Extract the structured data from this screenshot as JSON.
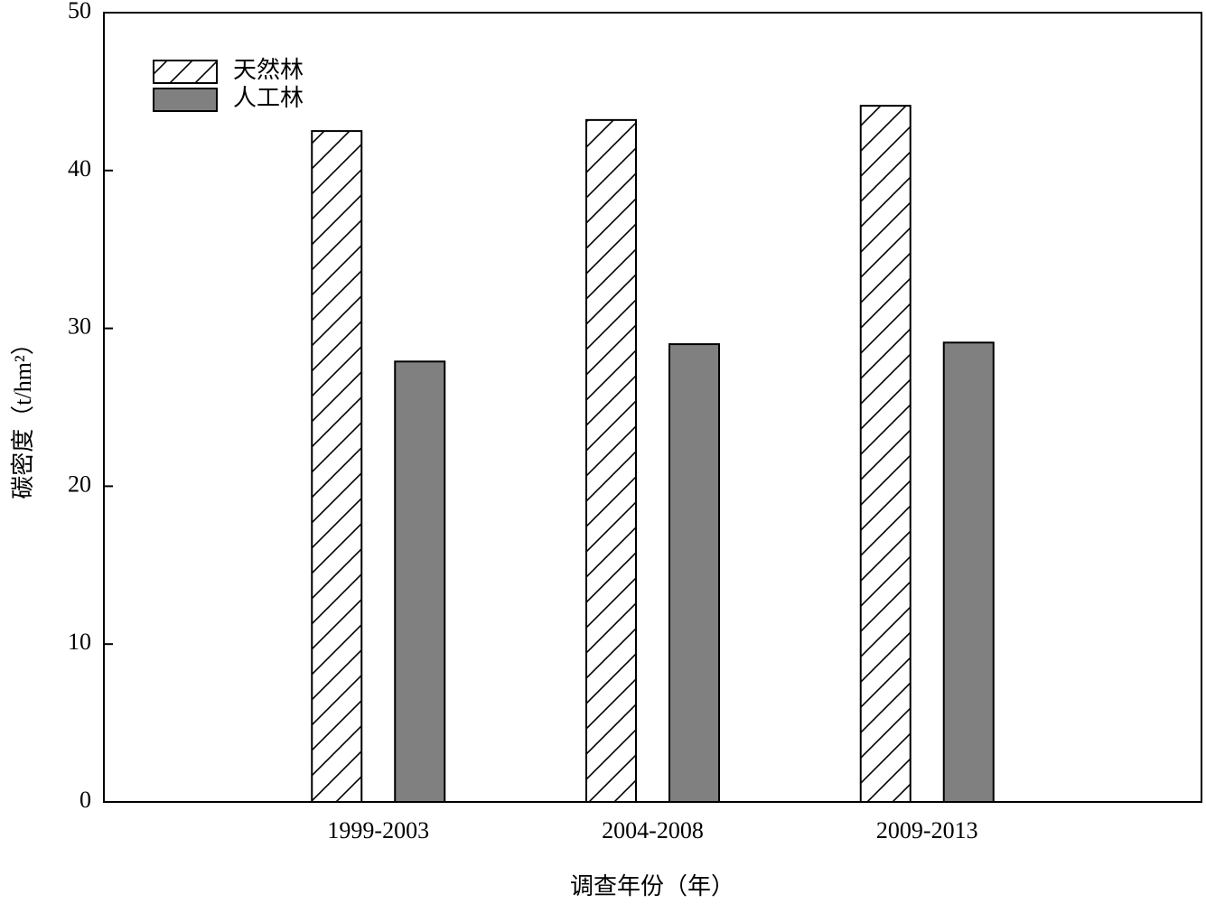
{
  "chart_data": {
    "type": "bar",
    "xlabel": "调查年份（年）",
    "ylabel": "碳密度（t/hm²）",
    "categories": [
      "1999-2003",
      "2004-2008",
      "2009-2013"
    ],
    "series": [
      {
        "name": "天然林",
        "color": "#000000",
        "pattern": "hatch",
        "values": [
          42.5,
          43.2,
          44.1
        ]
      },
      {
        "name": "人工林",
        "color": "#808080",
        "values": [
          27.9,
          29.0,
          29.1
        ]
      }
    ],
    "ylim": [
      0,
      50
    ],
    "yticks": [
      0,
      10,
      20,
      30,
      40,
      50
    ],
    "legend": "upper left"
  }
}
